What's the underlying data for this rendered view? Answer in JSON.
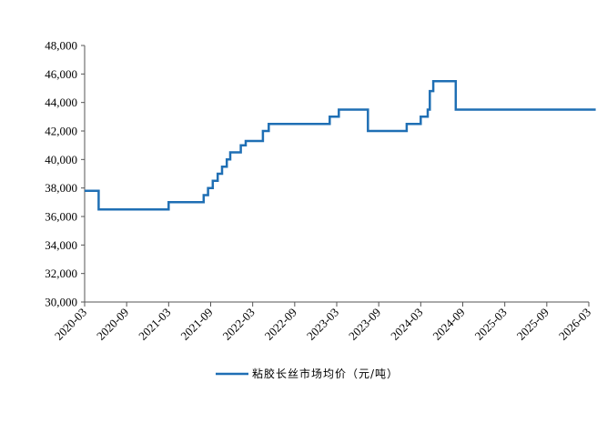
{
  "chart_data": {
    "type": "line",
    "title": "",
    "xlabel": "",
    "ylabel": "",
    "ylim": [
      30000,
      48000
    ],
    "xlim": [
      "2020-03",
      "2026-03"
    ],
    "y_ticks": [
      "30,000",
      "32,000",
      "34,000",
      "36,000",
      "38,000",
      "40,000",
      "42,000",
      "44,000",
      "46,000",
      "48,000"
    ],
    "x_ticks": [
      "2020-03",
      "2020-09",
      "2021-03",
      "2021-09",
      "2022-03",
      "2022-09",
      "2023-03",
      "2023-09",
      "2024-03",
      "2024-09",
      "2025-03",
      "2025-09",
      "2026-03"
    ],
    "grid": false,
    "legend_position": "bottom",
    "line_style": "step",
    "series": [
      {
        "name": "粘胶长丝市场均价（元/吨）",
        "color": "#1f6fb4",
        "x": [
          "2020-03-01",
          "2020-05-01",
          "2021-03-01",
          "2021-08-01",
          "2021-08-20",
          "2021-09-10",
          "2021-10-01",
          "2021-10-20",
          "2021-11-10",
          "2021-11-25",
          "2021-12-10",
          "2022-01-10",
          "2022-02-01",
          "2022-04-15",
          "2022-05-10",
          "2022-06-01",
          "2023-02-01",
          "2023-03-10",
          "2023-07-15",
          "2024-01-01",
          "2024-03-01",
          "2024-04-01",
          "2024-04-10",
          "2024-04-25",
          "2024-08-01",
          "2026-03-31"
        ],
        "values": [
          37800,
          36500,
          37000,
          37500,
          38000,
          38500,
          39000,
          39500,
          40000,
          40500,
          40500,
          41000,
          41300,
          42000,
          42500,
          42500,
          43000,
          43500,
          42000,
          42500,
          43000,
          43500,
          44800,
          45500,
          43500,
          43500
        ]
      }
    ]
  }
}
